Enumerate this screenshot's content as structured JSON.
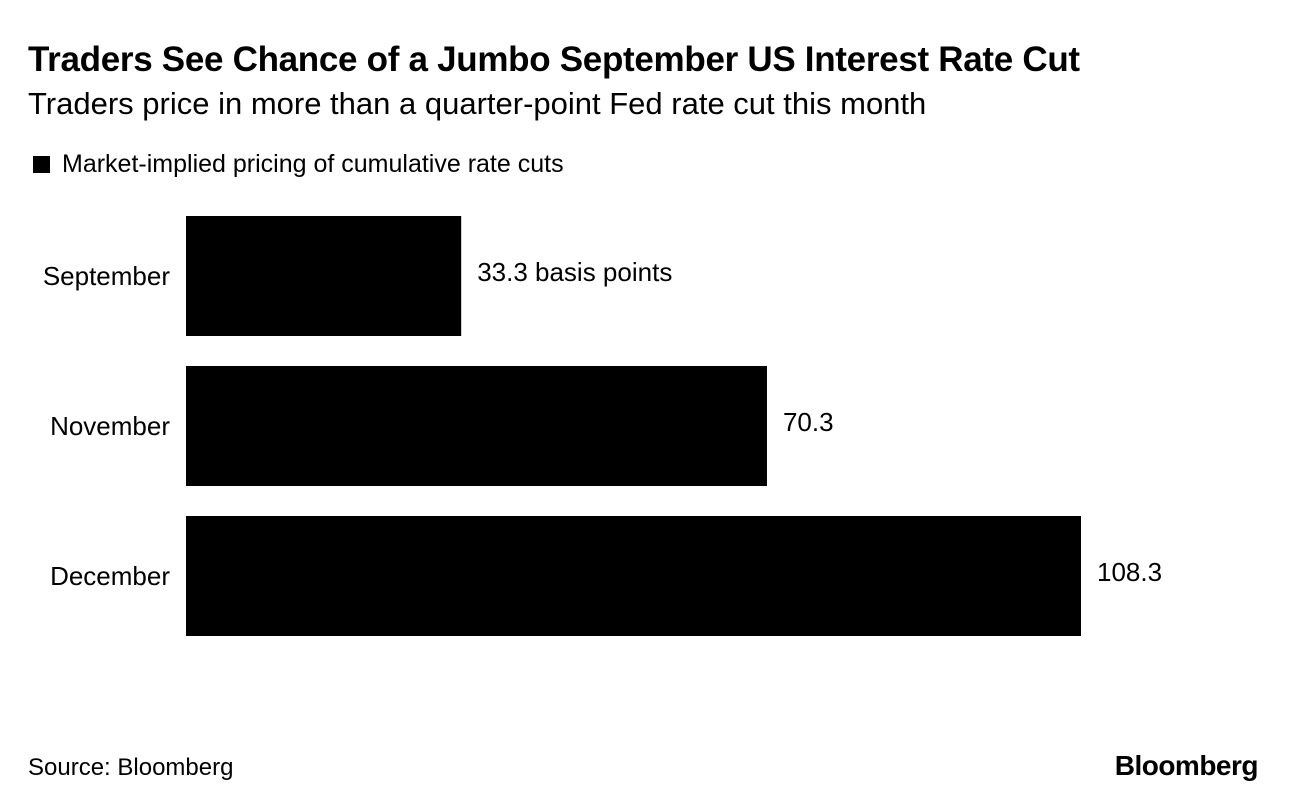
{
  "header": {
    "title": "Traders See Chance of a Jumbo September US Interest Rate Cut",
    "subtitle": "Traders price in more than a quarter-point Fed rate cut this month"
  },
  "legend": {
    "label": "Market-implied pricing of cumulative rate cuts"
  },
  "footer": {
    "source": "Source: Bloomberg",
    "brand": "Bloomberg"
  },
  "colors": {
    "bar": "#000000",
    "text": "#000000",
    "background": "#ffffff"
  },
  "chart_data": {
    "type": "bar",
    "orientation": "horizontal",
    "title": "Traders See Chance of a Jumbo September US Interest Rate Cut",
    "subtitle": "Traders price in more than a quarter-point Fed rate cut this month",
    "categories": [
      "September",
      "November",
      "December"
    ],
    "series": [
      {
        "name": "Market-implied pricing of cumulative rate cuts",
        "values": [
          33.3,
          70.3,
          108.3
        ]
      }
    ],
    "data_labels": [
      "33.3 basis points",
      "70.3",
      "108.3"
    ],
    "xlabel": "",
    "ylabel": "",
    "xlim": [
      0,
      108.3
    ],
    "grid": false,
    "legend_position": "top-left"
  }
}
